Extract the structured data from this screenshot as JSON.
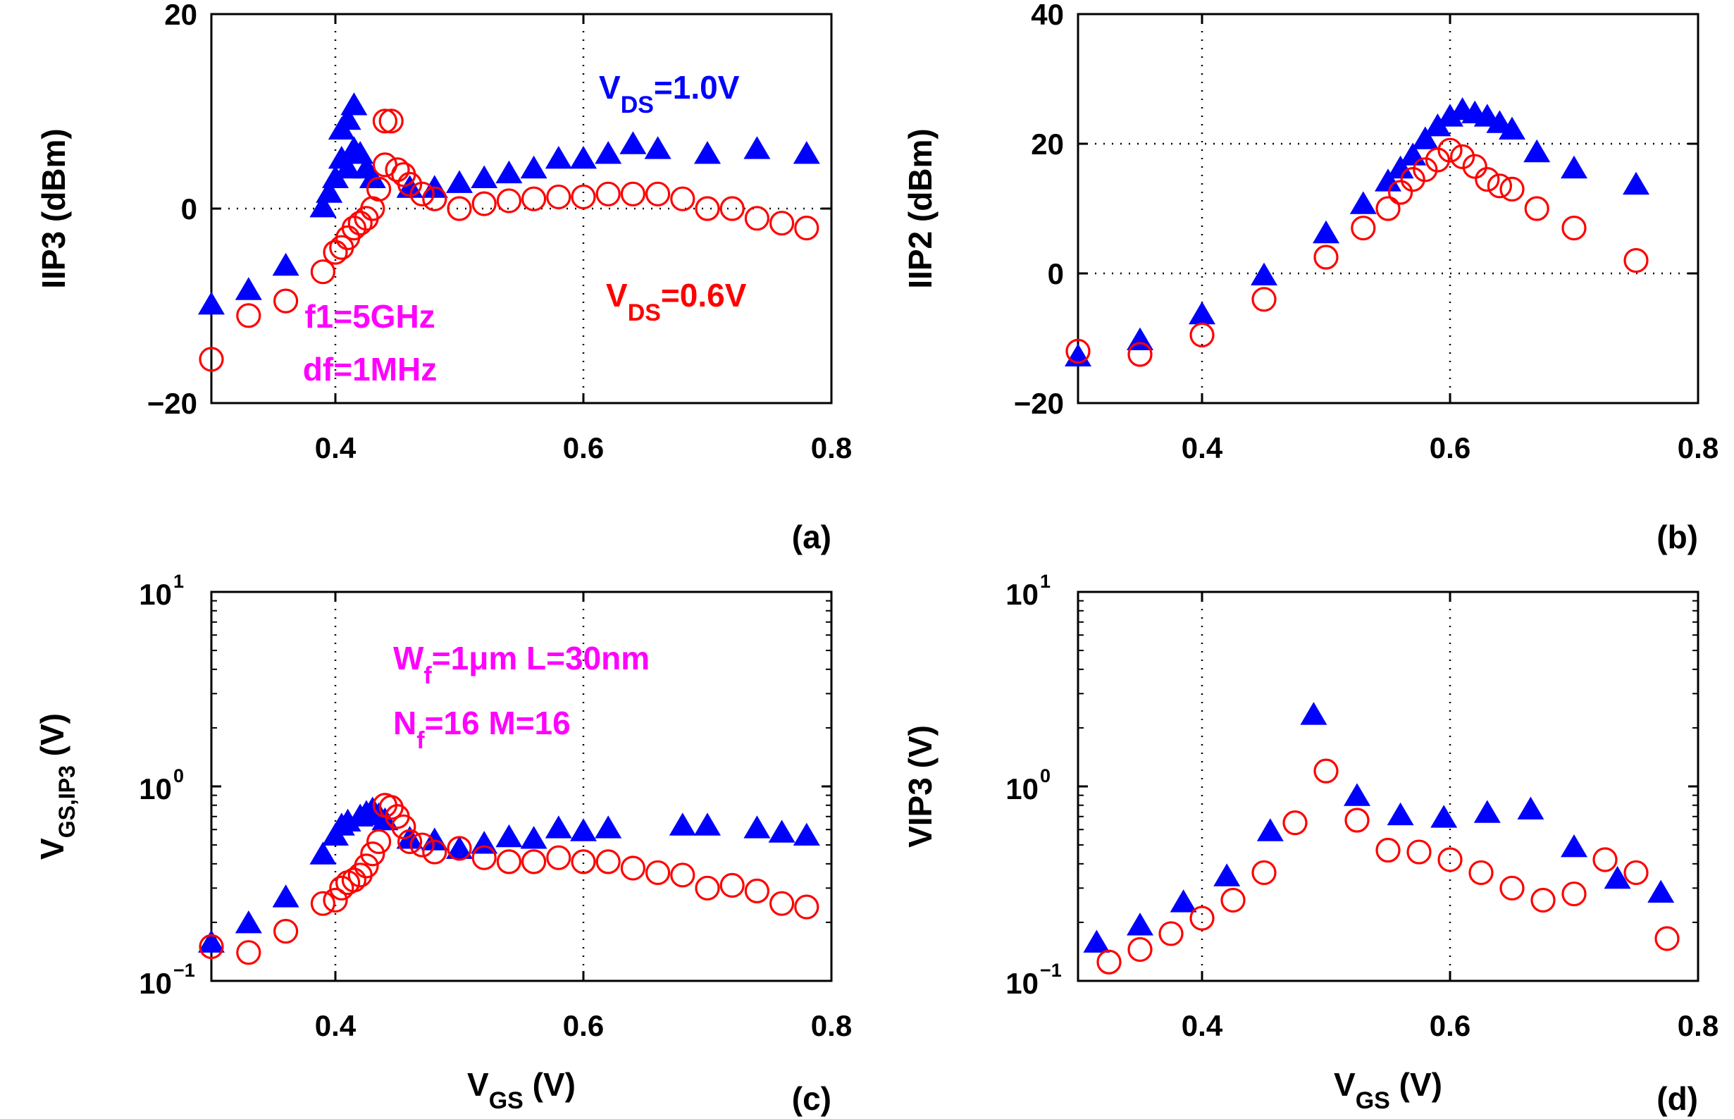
{
  "colors": {
    "series1": "#0000ff",
    "series2": "#ff0000",
    "annotation": "#ff00ff",
    "axis": "#000000"
  },
  "chart_data": [
    {
      "id": "a",
      "type": "scatter",
      "yscale": "linear",
      "panel_label": "(a)",
      "ylabel": "IIP3 (dBm)",
      "xlabel": "",
      "xlim": [
        0.3,
        0.8
      ],
      "ylim": [
        -20,
        20
      ],
      "xticks": [
        0.4,
        0.6,
        0.8
      ],
      "yticks": [
        -20,
        0,
        20
      ],
      "xtick_labels": [
        "0.4",
        "0.6",
        "0.8"
      ],
      "ytick_labels": [
        "−20",
        "0",
        "20"
      ],
      "grid_x": [
        0.4,
        0.6
      ],
      "grid_y": [
        0
      ],
      "series": [
        {
          "name": "VDS=1.0V",
          "marker": "triangle",
          "x": [
            0.3,
            0.33,
            0.36,
            0.39,
            0.395,
            0.4,
            0.405,
            0.405,
            0.41,
            0.41,
            0.415,
            0.415,
            0.42,
            0.425,
            0.43,
            0.46,
            0.48,
            0.5,
            0.52,
            0.54,
            0.56,
            0.58,
            0.6,
            0.62,
            0.64,
            0.66,
            0.7,
            0.74,
            0.78
          ],
          "y": [
            -10,
            -8.5,
            -6,
            0,
            1.5,
            3,
            5,
            8,
            4,
            9,
            6,
            10.5,
            5.5,
            4,
            3,
            2,
            2,
            2.5,
            3,
            3.5,
            4,
            5,
            5,
            5.5,
            6.5,
            6,
            5.5,
            6,
            5.5
          ]
        },
        {
          "name": "VDS=0.6V",
          "marker": "circle",
          "x": [
            0.3,
            0.33,
            0.36,
            0.39,
            0.4,
            0.405,
            0.41,
            0.415,
            0.42,
            0.425,
            0.43,
            0.435,
            0.44,
            0.44,
            0.445,
            0.45,
            0.455,
            0.46,
            0.47,
            0.48,
            0.5,
            0.52,
            0.54,
            0.56,
            0.58,
            0.6,
            0.62,
            0.64,
            0.66,
            0.68,
            0.7,
            0.72,
            0.74,
            0.76,
            0.78
          ],
          "y": [
            -15.5,
            -11,
            -9.5,
            -6.5,
            -4.5,
            -4,
            -3,
            -2,
            -1.5,
            -1,
            0,
            2,
            4.5,
            9,
            9,
            4,
            3.5,
            2.5,
            1.5,
            1,
            0,
            0.5,
            0.8,
            1,
            1.2,
            1.2,
            1.5,
            1.5,
            1.5,
            1,
            0,
            0,
            -1,
            -1.5,
            -2
          ]
        }
      ],
      "annotations": [
        {
          "id": "vds1",
          "lines": [
            [
              "V",
              "DS",
              "=1.0V"
            ]
          ],
          "color": "series1"
        },
        {
          "id": "vds06",
          "lines": [
            [
              "V",
              "DS",
              "=0.6V"
            ]
          ],
          "color": "series2"
        },
        {
          "id": "freq",
          "lines": [
            [
              "f1=5GHz"
            ],
            [
              "df=1MHz"
            ]
          ],
          "color": "annotation"
        }
      ]
    },
    {
      "id": "b",
      "type": "scatter",
      "yscale": "linear",
      "panel_label": "(b)",
      "ylabel": "IIP2 (dBm)",
      "xlabel": "",
      "xlim": [
        0.3,
        0.8
      ],
      "ylim": [
        -20,
        40
      ],
      "xticks": [
        0.4,
        0.6,
        0.8
      ],
      "yticks": [
        -20,
        0,
        20,
        40
      ],
      "xtick_labels": [
        "0.4",
        "0.6",
        "0.8"
      ],
      "ytick_labels": [
        "−20",
        "0",
        "20",
        "40"
      ],
      "grid_x": [
        0.4,
        0.6
      ],
      "grid_y": [
        0,
        20
      ],
      "series": [
        {
          "name": "VDS=1.0V",
          "marker": "triangle",
          "x": [
            0.3,
            0.35,
            0.4,
            0.45,
            0.5,
            0.53,
            0.55,
            0.56,
            0.57,
            0.58,
            0.59,
            0.6,
            0.61,
            0.62,
            0.63,
            0.64,
            0.65,
            0.67,
            0.7,
            0.75
          ],
          "y": [
            -13,
            -10.5,
            -6.5,
            -0.5,
            6,
            10.5,
            14,
            16,
            18,
            20.5,
            22.5,
            24,
            25,
            24.5,
            24,
            23,
            22,
            18.5,
            16,
            13.5
          ]
        },
        {
          "name": "VDS=0.6V",
          "marker": "circle",
          "x": [
            0.3,
            0.35,
            0.4,
            0.45,
            0.5,
            0.53,
            0.55,
            0.56,
            0.57,
            0.58,
            0.59,
            0.6,
            0.61,
            0.62,
            0.63,
            0.64,
            0.65,
            0.67,
            0.7,
            0.75
          ],
          "y": [
            -12,
            -12.5,
            -9.5,
            -4,
            2.5,
            7,
            10,
            12.5,
            14.5,
            16,
            17.5,
            19,
            18,
            16.5,
            14.5,
            13.5,
            13,
            10,
            7,
            2
          ]
        }
      ]
    },
    {
      "id": "c",
      "type": "scatter",
      "yscale": "log",
      "panel_label": "(c)",
      "ylabel": [
        "V",
        "GS,IP3",
        " (V)"
      ],
      "xlabel": [
        "V",
        "GS",
        " (V)"
      ],
      "xlim": [
        0.3,
        0.8
      ],
      "ylim": [
        0.1,
        10
      ],
      "xticks": [
        0.4,
        0.6,
        0.8
      ],
      "yticks": [
        0.1,
        1,
        10
      ],
      "xtick_labels": [
        "0.4",
        "0.6",
        "0.8"
      ],
      "ytick_labels": [
        [
          "10",
          "−1"
        ],
        [
          "10",
          "0"
        ],
        [
          "10",
          "1"
        ]
      ],
      "grid_x": [
        0.4,
        0.6
      ],
      "grid_y": [],
      "series": [
        {
          "name": "VDS=1.0V",
          "marker": "triangle",
          "x": [
            0.3,
            0.33,
            0.36,
            0.39,
            0.4,
            0.405,
            0.41,
            0.42,
            0.425,
            0.43,
            0.435,
            0.44,
            0.46,
            0.48,
            0.5,
            0.52,
            0.54,
            0.56,
            0.58,
            0.6,
            0.62,
            0.68,
            0.7,
            0.74,
            0.76,
            0.78
          ],
          "y": [
            0.155,
            0.195,
            0.265,
            0.44,
            0.55,
            0.62,
            0.65,
            0.69,
            0.72,
            0.75,
            0.7,
            0.66,
            0.53,
            0.52,
            0.47,
            0.5,
            0.54,
            0.53,
            0.6,
            0.58,
            0.6,
            0.62,
            0.62,
            0.6,
            0.57,
            0.55
          ]
        },
        {
          "name": "VDS=0.6V",
          "marker": "circle",
          "x": [
            0.3,
            0.33,
            0.36,
            0.39,
            0.4,
            0.405,
            0.41,
            0.415,
            0.42,
            0.425,
            0.43,
            0.435,
            0.44,
            0.445,
            0.45,
            0.455,
            0.46,
            0.47,
            0.48,
            0.5,
            0.52,
            0.54,
            0.56,
            0.58,
            0.6,
            0.62,
            0.64,
            0.66,
            0.68,
            0.7,
            0.72,
            0.74,
            0.76,
            0.78
          ],
          "y": [
            0.15,
            0.14,
            0.18,
            0.25,
            0.26,
            0.3,
            0.32,
            0.33,
            0.35,
            0.39,
            0.45,
            0.52,
            0.8,
            0.78,
            0.7,
            0.62,
            0.52,
            0.5,
            0.46,
            0.48,
            0.43,
            0.41,
            0.41,
            0.43,
            0.41,
            0.41,
            0.38,
            0.36,
            0.35,
            0.3,
            0.31,
            0.29,
            0.25,
            0.24
          ]
        }
      ],
      "annotations": [
        {
          "id": "dims",
          "lines": [
            [
              "W",
              "f",
              "=1μm L=30nm"
            ],
            [
              "N",
              "f",
              "=16      M=16"
            ]
          ],
          "color": "annotation"
        }
      ]
    },
    {
      "id": "d",
      "type": "scatter",
      "yscale": "log",
      "panel_label": "(d)",
      "ylabel": "VIP3 (V)",
      "xlabel": [
        "V",
        "GS",
        " (V)"
      ],
      "xlim": [
        0.3,
        0.8
      ],
      "ylim": [
        0.1,
        10
      ],
      "xticks": [
        0.4,
        0.6,
        0.8
      ],
      "yticks": [
        0.1,
        1,
        10
      ],
      "xtick_labels": [
        "0.4",
        "0.6",
        "0.8"
      ],
      "ytick_labels": [
        [
          "10",
          "−1"
        ],
        [
          "10",
          "0"
        ],
        [
          "10",
          "1"
        ]
      ],
      "grid_x": [
        0.4,
        0.6
      ],
      "grid_y": [],
      "series": [
        {
          "name": "VDS=1.0V",
          "marker": "triangle",
          "x": [
            0.315,
            0.35,
            0.385,
            0.42,
            0.455,
            0.49,
            0.525,
            0.56,
            0.595,
            0.63,
            0.665,
            0.7,
            0.735,
            0.77
          ],
          "y": [
            0.155,
            0.19,
            0.25,
            0.34,
            0.58,
            2.3,
            0.88,
            0.7,
            0.68,
            0.72,
            0.75,
            0.48,
            0.33,
            0.28
          ]
        },
        {
          "name": "VDS=0.6V",
          "marker": "circle",
          "x": [
            0.325,
            0.35,
            0.375,
            0.4,
            0.425,
            0.45,
            0.475,
            0.5,
            0.525,
            0.55,
            0.575,
            0.6,
            0.625,
            0.65,
            0.675,
            0.7,
            0.725,
            0.75,
            0.775
          ],
          "y": [
            0.125,
            0.145,
            0.175,
            0.21,
            0.26,
            0.36,
            0.65,
            1.2,
            0.67,
            0.47,
            0.46,
            0.42,
            0.36,
            0.3,
            0.26,
            0.28,
            0.42,
            0.36,
            0.165
          ]
        }
      ]
    }
  ]
}
